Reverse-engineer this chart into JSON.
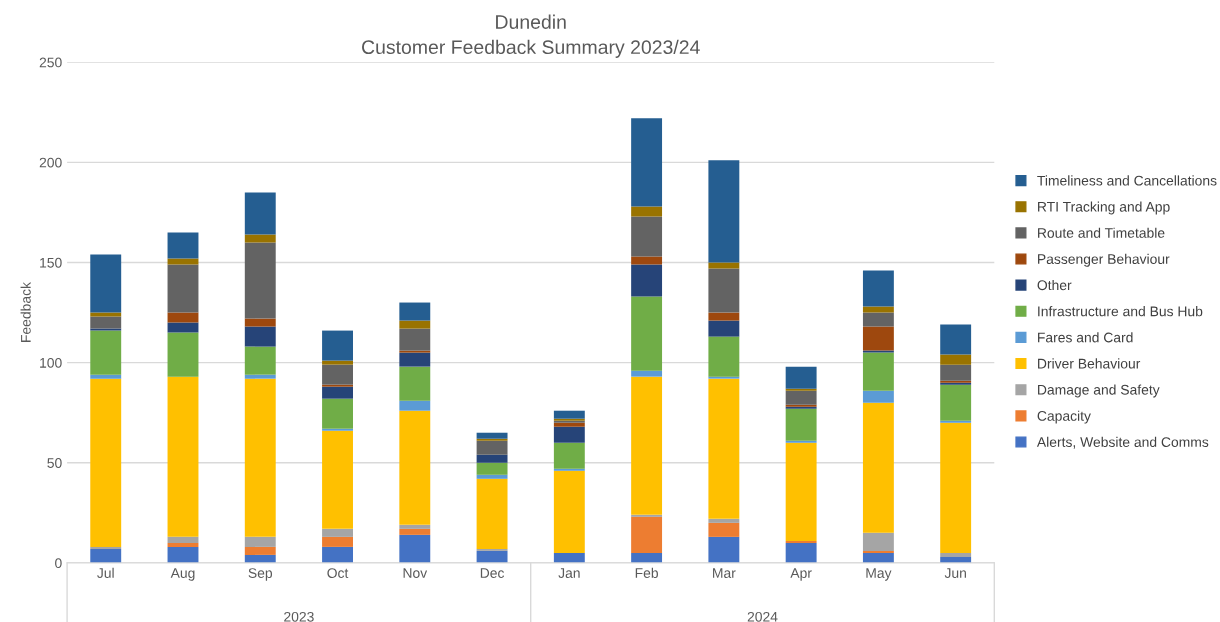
{
  "chart_data": {
    "type": "bar",
    "stacked": true,
    "title": "Dunedin\nCustomer Feedback Summary 2023/24",
    "ylabel": "Feedback",
    "categories": [
      "Jul",
      "Aug",
      "Sep",
      "Oct",
      "Nov",
      "Dec",
      "Jan",
      "Feb",
      "Mar",
      "Apr",
      "May",
      "Jun"
    ],
    "annotations": [
      "2023",
      "2024"
    ],
    "ylim": [
      0,
      250
    ],
    "yticks": [
      0,
      50,
      100,
      150,
      200,
      250
    ],
    "grid": "y",
    "legend": "right",
    "series": [
      {
        "name": "Alerts, Website and Comms",
        "color": "#4472c4",
        "values": [
          7,
          8,
          4,
          8,
          14,
          6,
          5,
          5,
          13,
          10,
          5,
          3
        ]
      },
      {
        "name": "Capacity",
        "color": "#ed7d31",
        "values": [
          0,
          2,
          4,
          5,
          3,
          0,
          0,
          18,
          7,
          1,
          1,
          0
        ]
      },
      {
        "name": "Damage and Safety",
        "color": "#a5a5a5",
        "values": [
          1,
          3,
          5,
          4,
          2,
          1,
          0,
          1,
          2,
          0,
          9,
          2
        ]
      },
      {
        "name": "Driver Behaviour",
        "color": "#ffc000",
        "values": [
          84,
          80,
          79,
          49,
          57,
          35,
          41,
          69,
          70,
          49,
          65,
          65
        ]
      },
      {
        "name": "Fares and Card",
        "color": "#5b9bd5",
        "values": [
          2,
          0,
          2,
          1,
          5,
          2,
          1,
          3,
          1,
          1,
          6,
          1
        ]
      },
      {
        "name": "Infrastructure and Bus Hub",
        "color": "#70ad47",
        "values": [
          22,
          22,
          14,
          15,
          17,
          6,
          13,
          37,
          20,
          16,
          19,
          18
        ]
      },
      {
        "name": "Other",
        "color": "#264478",
        "values": [
          1,
          5,
          10,
          6,
          7,
          4,
          8,
          16,
          8,
          1,
          1,
          1
        ]
      },
      {
        "name": "Passenger Behaviour",
        "color": "#9e480e",
        "values": [
          0,
          5,
          4,
          1,
          1,
          0,
          2,
          4,
          4,
          1,
          12,
          1
        ]
      },
      {
        "name": "Route and Timetable",
        "color": "#636363",
        "values": [
          6,
          24,
          38,
          10,
          11,
          7,
          1,
          20,
          22,
          7,
          7,
          8
        ]
      },
      {
        "name": "RTI Tracking and App",
        "color": "#997300",
        "values": [
          2,
          3,
          4,
          2,
          4,
          1,
          1,
          5,
          3,
          1,
          3,
          5
        ]
      },
      {
        "name": "Timeliness and Cancellations",
        "color": "#255e91",
        "values": [
          29,
          13,
          21,
          15,
          9,
          3,
          4,
          44,
          51,
          11,
          18,
          15
        ]
      }
    ]
  }
}
